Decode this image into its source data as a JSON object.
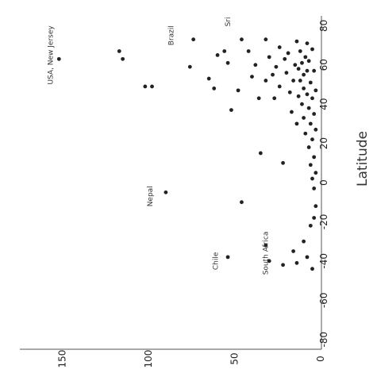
{
  "chart_data": {
    "type": "scatter",
    "title": "",
    "xlabel": "",
    "ylabel": "Latitude",
    "x_ticks": [
      0,
      50,
      100,
      150
    ],
    "y_ticks": [
      -80,
      -60,
      -40,
      -20,
      0,
      20,
      40,
      60,
      80
    ],
    "xlim": [
      0,
      175
    ],
    "ylim": [
      -85,
      85
    ],
    "grid": false,
    "annotations": [
      {
        "text": "USA, New Jersey",
        "x": 150,
        "y": 65
      },
      {
        "text": "Brazil",
        "x": 80,
        "y": 75
      },
      {
        "text": "Nepal",
        "x": 92,
        "y": -7
      },
      {
        "text": "South Africa",
        "x": 25,
        "y": -36
      },
      {
        "text": "Chile",
        "x": 54,
        "y": -40
      },
      {
        "text": "Sri",
        "x": 47,
        "y": 82
      }
    ],
    "series": [
      {
        "points": [
          {
            "x": 150,
            "y": 63
          },
          {
            "x": 115,
            "y": 67
          },
          {
            "x": 113,
            "y": 63
          },
          {
            "x": 100,
            "y": 49
          },
          {
            "x": 96,
            "y": 49
          },
          {
            "x": 88,
            "y": -5
          },
          {
            "x": 74,
            "y": 59
          },
          {
            "x": 72,
            "y": 73
          },
          {
            "x": 63,
            "y": 53
          },
          {
            "x": 60,
            "y": 48
          },
          {
            "x": 58,
            "y": 65
          },
          {
            "x": 54,
            "y": 67
          },
          {
            "x": 52,
            "y": 61
          },
          {
            "x": 50,
            "y": 37
          },
          {
            "x": 46,
            "y": 47
          },
          {
            "x": 44,
            "y": -10
          },
          {
            "x": 44,
            "y": 73
          },
          {
            "x": 40,
            "y": 67
          },
          {
            "x": 38,
            "y": 54
          },
          {
            "x": 36,
            "y": 60
          },
          {
            "x": 34,
            "y": 43
          },
          {
            "x": 33,
            "y": 15
          },
          {
            "x": 30,
            "y": 52
          },
          {
            "x": 30,
            "y": 73
          },
          {
            "x": 28,
            "y": 64
          },
          {
            "x": 26,
            "y": 55
          },
          {
            "x": 25,
            "y": 43
          },
          {
            "x": 24,
            "y": 59
          },
          {
            "x": 22,
            "y": 49
          },
          {
            "x": 22,
            "y": 69
          },
          {
            "x": 20,
            "y": 10
          },
          {
            "x": 19,
            "y": 63
          },
          {
            "x": 18,
            "y": 56
          },
          {
            "x": 17,
            "y": 66
          },
          {
            "x": 16,
            "y": 46
          },
          {
            "x": 15,
            "y": 36
          },
          {
            "x": 14,
            "y": 52
          },
          {
            "x": 13,
            "y": 60
          },
          {
            "x": 12,
            "y": 72
          },
          {
            "x": 12,
            "y": 30
          },
          {
            "x": 11,
            "y": 44
          },
          {
            "x": 11,
            "y": 58
          },
          {
            "x": 10,
            "y": 67
          },
          {
            "x": 10,
            "y": 52
          },
          {
            "x": 9,
            "y": 61
          },
          {
            "x": 9,
            "y": 40
          },
          {
            "x": 8,
            "y": 55
          },
          {
            "x": 8,
            "y": 33
          },
          {
            "x": 8,
            "y": 48
          },
          {
            "x": 7,
            "y": 64
          },
          {
            "x": 7,
            "y": 25
          },
          {
            "x": 6,
            "y": 71
          },
          {
            "x": 6,
            "y": 57
          },
          {
            "x": 6,
            "y": 45
          },
          {
            "x": 5,
            "y": 38
          },
          {
            "x": 5,
            "y": 18
          },
          {
            "x": 5,
            "y": 62
          },
          {
            "x": 4,
            "y": 51
          },
          {
            "x": 4,
            "y": 30
          },
          {
            "x": 4,
            "y": 9
          },
          {
            "x": 3,
            "y": 68
          },
          {
            "x": 3,
            "y": 43
          },
          {
            "x": 3,
            "y": 22
          },
          {
            "x": 3,
            "y": 2
          },
          {
            "x": 2,
            "y": 57
          },
          {
            "x": 2,
            "y": 35
          },
          {
            "x": 2,
            "y": 13
          },
          {
            "x": 2,
            "y": -3
          },
          {
            "x": 1,
            "y": 47
          },
          {
            "x": 1,
            "y": 27
          },
          {
            "x": 1,
            "y": 5
          },
          {
            "x": 1,
            "y": -12
          },
          {
            "x": 30,
            "y": -32
          },
          {
            "x": 28,
            "y": -40
          },
          {
            "x": 20,
            "y": -42
          },
          {
            "x": 14,
            "y": -35
          },
          {
            "x": 12,
            "y": -41
          },
          {
            "x": 8,
            "y": -30
          },
          {
            "x": 6,
            "y": -38
          },
          {
            "x": 4,
            "y": -22
          },
          {
            "x": 3,
            "y": -44
          },
          {
            "x": 2,
            "y": -18
          },
          {
            "x": 52,
            "y": -38
          }
        ]
      }
    ]
  }
}
